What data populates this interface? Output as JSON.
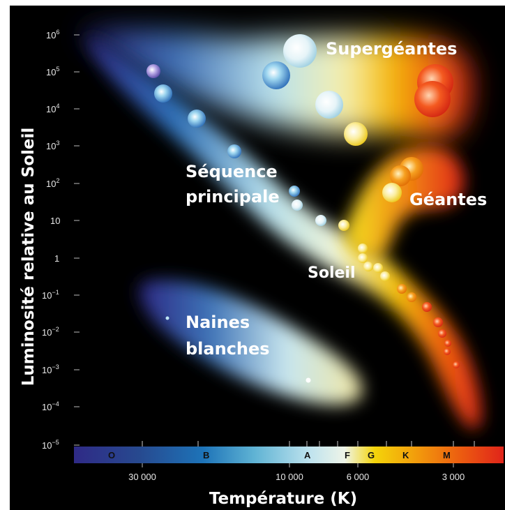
{
  "labels": {
    "supergiants": "Supergéantes",
    "main_sequence_1": "Séquence",
    "main_sequence_2": "principale",
    "giants": "Géantes",
    "sun": "Soleil",
    "white_dwarfs_1": "Naines",
    "white_dwarfs_2": "blanches"
  },
  "y_axis": {
    "title": "Luminosité relative au Soleil",
    "ticks": [
      {
        "base": "10",
        "exp": "6"
      },
      {
        "base": "10",
        "exp": "5"
      },
      {
        "base": "10",
        "exp": "4"
      },
      {
        "base": "10",
        "exp": "3"
      },
      {
        "base": "10",
        "exp": "2"
      },
      {
        "base": "10",
        "exp": ""
      },
      {
        "base": "1",
        "exp": ""
      },
      {
        "base": "10",
        "exp": "−1"
      },
      {
        "base": "10",
        "exp": "−2"
      },
      {
        "base": "10",
        "exp": "−3"
      },
      {
        "base": "10",
        "exp": "−4"
      },
      {
        "base": "10",
        "exp": "−5"
      }
    ]
  },
  "x_axis": {
    "title": "Température (K)",
    "ticks": [
      "30 000",
      "10 000",
      "6 000",
      "3 000"
    ]
  },
  "spectral_classes": [
    "O",
    "B",
    "A",
    "F",
    "G",
    "K",
    "M"
  ],
  "colors": {
    "hot": "#2e2a8a",
    "blue": "#1f78c4",
    "white": "#d6eef4",
    "yellow": "#f2c400",
    "orange": "#f07800",
    "red": "#e22414"
  }
}
